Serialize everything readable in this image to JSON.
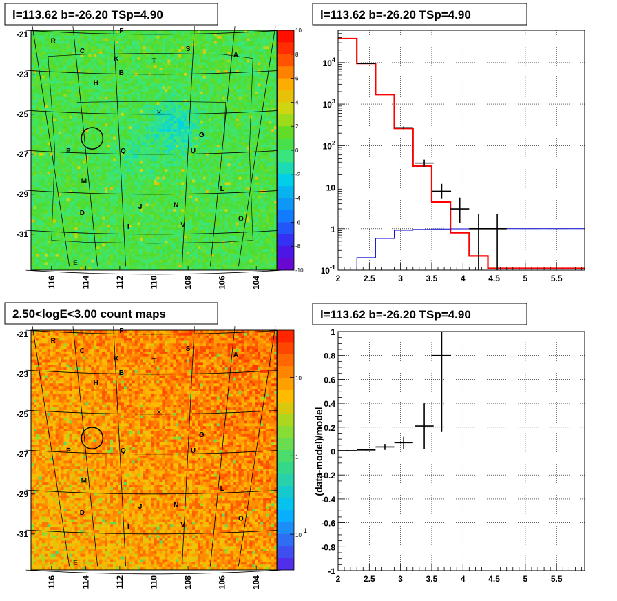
{
  "panels": [
    {
      "id": "tl",
      "title": "l=113.62 b=-26.20 TSp=4.90"
    },
    {
      "id": "tr",
      "title": "l=113.62 b=-26.20 TSp=4.90"
    },
    {
      "id": "bl",
      "title": "2.50<logE<3.00 count maps"
    },
    {
      "id": "br",
      "title": "l=113.62 b=-26.20 TSp=4.90"
    }
  ],
  "chart_data": [
    {
      "type": "heatmap",
      "title": "l=113.62 b=-26.20 TSp=4.90",
      "x_ticks": [
        "116",
        "114",
        "112",
        "110",
        "108",
        "106",
        "104"
      ],
      "y_ticks": [
        "-21",
        "-23",
        "-25",
        "-27",
        "-29",
        "-31"
      ],
      "xlim": [
        117.2,
        102.8
      ],
      "ylim": [
        -32.8,
        -20.8
      ],
      "z_ticks": [
        "10",
        "8",
        "6",
        "4",
        "2",
        "0",
        "-2",
        "-4",
        "-6",
        "-8",
        "-10"
      ],
      "zlim": [
        -10,
        10
      ],
      "source_labels": [
        {
          "t": "R",
          "l": 115.9,
          "b": -21.3
        },
        {
          "t": "F",
          "l": 111.9,
          "b": -20.8
        },
        {
          "t": "C",
          "l": 114.2,
          "b": -21.8
        },
        {
          "t": "K",
          "l": 112.2,
          "b": -22.2
        },
        {
          "t": "T",
          "l": 110.0,
          "b": -22.3
        },
        {
          "t": "S",
          "l": 108.0,
          "b": -21.7
        },
        {
          "t": "A",
          "l": 105.2,
          "b": -22.0
        },
        {
          "t": "B",
          "l": 111.9,
          "b": -22.9
        },
        {
          "t": "H",
          "l": 113.4,
          "b": -23.4
        },
        {
          "t": "G",
          "l": 107.2,
          "b": -26.0
        },
        {
          "t": "P",
          "l": 115.0,
          "b": -26.8
        },
        {
          "t": "Q",
          "l": 111.8,
          "b": -26.8
        },
        {
          "t": "U",
          "l": 107.7,
          "b": -26.8
        },
        {
          "t": "M",
          "l": 114.1,
          "b": -28.3
        },
        {
          "t": "L",
          "l": 106.0,
          "b": -28.7
        },
        {
          "t": "D",
          "l": 114.2,
          "b": -29.9
        },
        {
          "t": "J",
          "l": 110.8,
          "b": -29.6
        },
        {
          "t": "N",
          "l": 108.7,
          "b": -29.5
        },
        {
          "t": "O",
          "l": 104.9,
          "b": -30.2
        },
        {
          "t": "I",
          "l": 111.5,
          "b": -30.6
        },
        {
          "t": "V",
          "l": 108.3,
          "b": -30.5
        },
        {
          "t": "E",
          "l": 114.6,
          "b": -32.4
        }
      ],
      "circle": {
        "l": 113.62,
        "b": -26.2,
        "r": 0.45
      },
      "cross": {
        "l": 109.7,
        "b": -24.9
      }
    },
    {
      "type": "line",
      "title": "l=113.62 b=-26.20 TSp=4.90",
      "y_scale": "log",
      "xlim": [
        2.0,
        5.95
      ],
      "ylim": [
        0.1,
        60000
      ],
      "x_ticks": [
        "2",
        "2.5",
        "3",
        "3.5",
        "4",
        "4.5",
        "5",
        "5.5"
      ],
      "y_ticks": [
        "10^4",
        "10^3",
        "10^2",
        "10",
        "1",
        "10^-1"
      ],
      "grid": true,
      "series": [
        {
          "color": "#ff0000",
          "bins": [
            2.0,
            2.3,
            2.6,
            2.9,
            3.2,
            3.5,
            3.8,
            4.1,
            4.4,
            5.95
          ],
          "values": [
            38000,
            9500,
            1700,
            260,
            32,
            4.4,
            0.8,
            0.22,
            0.11
          ]
        },
        {
          "color": "#0000cc",
          "bins": [
            2.3,
            2.6,
            2.9,
            3.2,
            3.5,
            3.8,
            4.1,
            4.4,
            5.95
          ],
          "values": [
            0.2,
            0.58,
            0.92,
            0.96,
            0.98,
            0.99,
            1.0,
            1.0
          ]
        }
      ],
      "points": [
        {
          "x": 2.45,
          "y": 9500,
          "xerr": 0.15,
          "ylo": 9200,
          "yhi": 9800
        },
        {
          "x": 3.05,
          "y": 270,
          "xerr": 0.15,
          "ylo": 250,
          "yhi": 290
        },
        {
          "x": 3.38,
          "y": 38,
          "xerr": 0.15,
          "ylo": 31,
          "yhi": 46
        },
        {
          "x": 3.66,
          "y": 8,
          "xerr": 0.15,
          "ylo": 5.2,
          "yhi": 12
        },
        {
          "x": 3.95,
          "y": 3,
          "xerr": 0.15,
          "ylo": 1.4,
          "yhi": 5.6
        },
        {
          "x": 4.25,
          "y": 1,
          "xerr": 0.15,
          "ylo": 0.1,
          "yhi": 2.3
        },
        {
          "x": 4.55,
          "y": 1,
          "xerr": 0.15,
          "ylo": 0.1,
          "yhi": 2.3
        }
      ]
    },
    {
      "type": "heatmap",
      "title": "2.50<logE<3.00 count maps",
      "x_ticks": [
        "116",
        "114",
        "112",
        "110",
        "108",
        "106",
        "104"
      ],
      "y_ticks": [
        "-21",
        "-23",
        "-25",
        "-27",
        "-29",
        "-31"
      ],
      "xlim": [
        117.2,
        102.8
      ],
      "ylim": [
        -32.8,
        -20.8
      ],
      "z_ticks": [
        "10",
        "1",
        "10^-1"
      ],
      "z_scale": "log"
    },
    {
      "type": "scatter",
      "title": "l=113.62 b=-26.20 TSp=4.90",
      "ylabel": "(data-model)/model",
      "xlim": [
        2.0,
        5.95
      ],
      "ylim": [
        -1,
        1
      ],
      "x_ticks": [
        "2",
        "2.5",
        "3",
        "3.5",
        "4",
        "4.5",
        "5",
        "5.5"
      ],
      "y_ticks": [
        "1",
        "0.8",
        "0.6",
        "0.4",
        "0.2",
        "0",
        "-0.2",
        "-0.4",
        "-0.6",
        "-0.8",
        "-1"
      ],
      "grid": true,
      "points": [
        {
          "x": 2.15,
          "y": 0.003,
          "xerr": 0.15,
          "ylo": -0.003,
          "yhi": 0.009
        },
        {
          "x": 2.45,
          "y": 0.01,
          "xerr": 0.15,
          "ylo": 0.0,
          "yhi": 0.02
        },
        {
          "x": 2.75,
          "y": 0.035,
          "xerr": 0.15,
          "ylo": 0.01,
          "yhi": 0.06
        },
        {
          "x": 3.05,
          "y": 0.07,
          "xerr": 0.15,
          "ylo": 0.02,
          "yhi": 0.12
        },
        {
          "x": 3.38,
          "y": 0.21,
          "xerr": 0.15,
          "ylo": 0.02,
          "yhi": 0.4
        },
        {
          "x": 3.66,
          "y": 0.8,
          "xerr": 0.15,
          "ylo": 0.16,
          "yhi": 1.0
        }
      ]
    }
  ]
}
